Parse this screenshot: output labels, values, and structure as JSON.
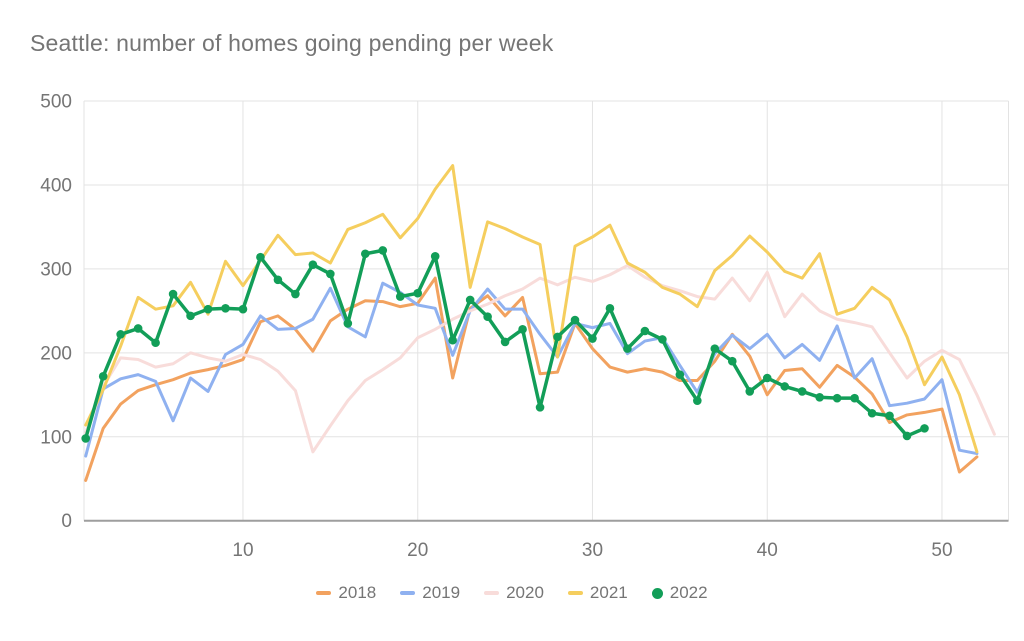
{
  "title": "Seattle: number of homes going pending per week",
  "colors": {
    "grid": "#e3e3e3",
    "baseline": "#9e9e9e",
    "text": "#757575",
    "background": "#ffffff"
  },
  "chart_data": {
    "type": "line",
    "title": "Seattle: number of homes going pending per week",
    "xlabel": "",
    "ylabel": "",
    "x_unit": "week number",
    "x_start": 1,
    "xlim": [
      1,
      53
    ],
    "ylim": [
      0,
      500
    ],
    "x_ticks": [
      10,
      20,
      30,
      40,
      50
    ],
    "y_ticks": [
      0,
      100,
      200,
      300,
      400,
      500
    ],
    "grid": true,
    "legend_position": "bottom",
    "series": [
      {
        "name": "2018",
        "color": "#f2a25f",
        "marker": false,
        "values": [
          48,
          110,
          139,
          155,
          162,
          168,
          176,
          180,
          185,
          192,
          237,
          244,
          228,
          202,
          238,
          252,
          262,
          261,
          255,
          259,
          289,
          170,
          253,
          268,
          244,
          266,
          175,
          177,
          235,
          205,
          183,
          177,
          181,
          177,
          167,
          167,
          190,
          222,
          196,
          150,
          179,
          181,
          159,
          185,
          171,
          151,
          117,
          126,
          129,
          133,
          58,
          76
        ]
      },
      {
        "name": "2019",
        "color": "#8fb1f0",
        "marker": false,
        "values": [
          77,
          157,
          169,
          174,
          166,
          119,
          170,
          154,
          198,
          210,
          244,
          228,
          229,
          240,
          277,
          231,
          219,
          283,
          272,
          257,
          253,
          197,
          250,
          276,
          252,
          252,
          222,
          195,
          235,
          230,
          235,
          199,
          214,
          218,
          185,
          153,
          199,
          221,
          205,
          222,
          194,
          210,
          191,
          232,
          170,
          193,
          137,
          140,
          145,
          168,
          84,
          80
        ]
      },
      {
        "name": "2020",
        "color": "#f8dcda",
        "marker": false,
        "values": [
          105,
          160,
          194,
          192,
          183,
          187,
          200,
          194,
          190,
          198,
          192,
          178,
          155,
          82,
          113,
          143,
          167,
          180,
          194,
          218,
          228,
          240,
          250,
          258,
          268,
          276,
          289,
          281,
          290,
          285,
          293,
          304,
          290,
          280,
          274,
          267,
          264,
          289,
          262,
          296,
          243,
          270,
          250,
          240,
          236,
          231,
          200,
          170,
          190,
          203,
          192,
          150,
          103
        ]
      },
      {
        "name": "2021",
        "color": "#f5ce5e",
        "marker": false,
        "values": [
          114,
          156,
          208,
          266,
          252,
          256,
          284,
          246,
          309,
          280,
          310,
          340,
          317,
          319,
          307,
          347,
          355,
          365,
          337,
          360,
          395,
          423,
          278,
          356,
          348,
          338,
          329,
          195,
          327,
          338,
          352,
          307,
          296,
          278,
          270,
          255,
          298,
          316,
          339,
          320,
          297,
          289,
          318,
          246,
          253,
          278,
          263,
          219,
          162,
          195,
          150,
          82
        ]
      },
      {
        "name": "2022",
        "color": "#129e58",
        "marker": true,
        "values": [
          98,
          172,
          222,
          229,
          212,
          270,
          244,
          252,
          253,
          252,
          314,
          287,
          270,
          305,
          294,
          235,
          318,
          322,
          267,
          271,
          315,
          215,
          263,
          243,
          213,
          228,
          135,
          219,
          239,
          217,
          253,
          205,
          226,
          216,
          174,
          143,
          205,
          190,
          154,
          170,
          160,
          154,
          147,
          146,
          146,
          128,
          125,
          101,
          110
        ]
      }
    ]
  }
}
